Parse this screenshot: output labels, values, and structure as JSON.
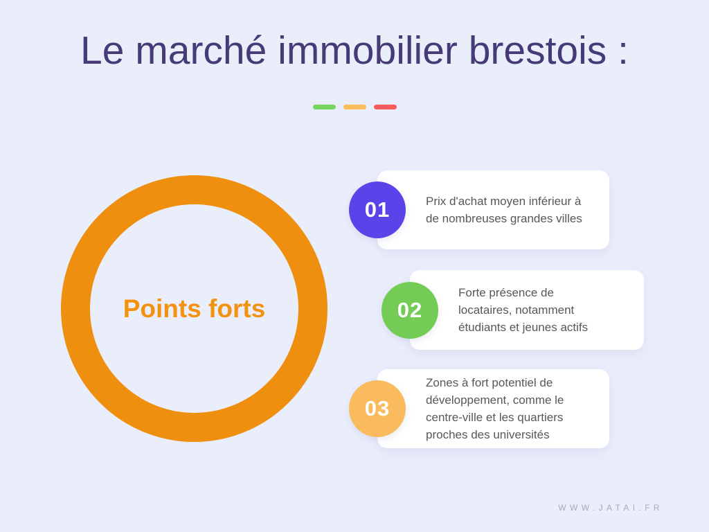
{
  "page": {
    "title": "Le marché immobilier brestois :",
    "title_color": "#463B77",
    "background": "#EAEEFB",
    "footer": "WWW.JATAI.FR",
    "footer_color": "#A6AABA"
  },
  "divider_dashes": [
    {
      "name": "green",
      "color": "#76D65B"
    },
    {
      "name": "orange",
      "color": "#FBBE59"
    },
    {
      "name": "red",
      "color": "#F95B5B"
    }
  ],
  "hub": {
    "label": "Points forts",
    "ring_color": "#EE8F10",
    "label_color": "#F29211"
  },
  "items": [
    {
      "number": "01",
      "badge_color": "#5A43E8",
      "text": "Prix d'achat moyen inférieur à de nombreuses grandes villes"
    },
    {
      "number": "02",
      "badge_color": "#74CC56",
      "text": "Forte présence de locataires, notamment étudiants et jeunes actifs"
    },
    {
      "number": "03",
      "badge_color": "#F9BB5E",
      "text": "Zones à fort potentiel de développement, comme le centre-ville et les quartiers proches des universités"
    }
  ]
}
